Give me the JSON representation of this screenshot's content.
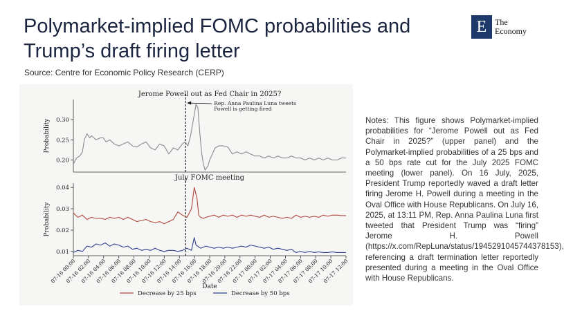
{
  "page": {
    "title": "Polymarket-implied FOMC probabilities and Trump’s draft firing letter",
    "source": "Source: Centre for Economic Policy Research (CERP)",
    "logo_mark": "E",
    "logo_line1": "The",
    "logo_line2": "Economy",
    "notes": "Notes: This figure shows Polymarket-implied probabilities for “Jerome Powell out as Fed Chair in 2025?” (upper panel) and the Polymarket-implied probabilities of a 25 bps and a 50 bps rate cut for the July 2025 FOMC meeting (lower panel). On 16 July, 2025, President Trump reportedly waved a draft letter firing Jerome H. Powell during a meeting in the Oval Office with House Republicans. On July 16, 2025, at 13:11 PM, Rep. Anna Paulina Luna first tweeted that President Trump was “firing” Jerome H. Powell (https://x.com/RepLuna/status/1945291045744378153), referencing a draft termination letter reportedly presented during a meeting in the Oval Office with House Republicans.",
    "colors": {
      "title": "#1b2540",
      "logo_bg": "#1d3a6b",
      "line_top": "#8a8a8a",
      "line_25": "#b0443c",
      "line_50": "#2f3f8f"
    }
  },
  "chart_data": [
    {
      "type": "line",
      "title": "Jerome Powell out as Fed Chair in 2025?",
      "ylabel": "Probability",
      "ylim": [
        0.17,
        0.35
      ],
      "yticks": [
        "0.20",
        "0.25",
        "0.30"
      ],
      "annotation": "Rep. Anna Paulina Luna tweets Powell is getting fired",
      "event_x": 12.35,
      "series": [
        {
          "name": "",
          "color": "#8a8a8a",
          "x": [
            0,
            0.35,
            0.7,
            1,
            1.2,
            1.5,
            1.8,
            2,
            2.5,
            3,
            3.3,
            3.6,
            4,
            4.5,
            5,
            5.5,
            6,
            6.5,
            7,
            7.5,
            8,
            8.5,
            9,
            9.5,
            10,
            10.5,
            11,
            11.5,
            12,
            12.3,
            12.6,
            12.9,
            13.2,
            13.5,
            13.7,
            13.9,
            14.1,
            14.3,
            14.5,
            14.8,
            15,
            15.3,
            15.6,
            16,
            16.5,
            17,
            17.5,
            18,
            18.5,
            19,
            19.5,
            20,
            20.5,
            21,
            21.5,
            22,
            22.5,
            23,
            23.5,
            24,
            24.5,
            25,
            25.5,
            26,
            26.5,
            27,
            27.5,
            28,
            28.5,
            29,
            29.5,
            30
          ],
          "values": [
            0.19,
            0.205,
            0.21,
            0.22,
            0.25,
            0.265,
            0.255,
            0.26,
            0.25,
            0.255,
            0.255,
            0.245,
            0.25,
            0.24,
            0.235,
            0.24,
            0.245,
            0.235,
            0.232,
            0.24,
            0.245,
            0.23,
            0.225,
            0.24,
            0.235,
            0.215,
            0.23,
            0.225,
            0.24,
            0.245,
            0.235,
            0.26,
            0.3,
            0.338,
            0.33,
            0.27,
            0.22,
            0.19,
            0.175,
            0.185,
            0.2,
            0.215,
            0.23,
            0.235,
            0.235,
            0.232,
            0.215,
            0.22,
            0.215,
            0.22,
            0.215,
            0.21,
            0.21,
            0.205,
            0.21,
            0.205,
            0.21,
            0.205,
            0.205,
            0.21,
            0.205,
            0.205,
            0.2,
            0.205,
            0.2,
            0.205,
            0.2,
            0.205,
            0.2,
            0.2,
            0.205,
            0.205
          ]
        }
      ]
    },
    {
      "type": "line",
      "title": "July FOMC meeting",
      "xlabel": "Date",
      "ylabel": "Probability",
      "ylim": [
        0.008,
        0.042
      ],
      "yticks": [
        "0.01",
        "0.02",
        "0.03",
        "0.04"
      ],
      "xtick_labels": [
        "07-16 00:00",
        "07-16 02:00",
        "07-16 04:00",
        "07-16 06:00",
        "07-16 08:00",
        "07-16 10:00",
        "07-16 12:00",
        "07-16 14:00",
        "07-16 16:00",
        "07-16 18:00",
        "07-16 20:00",
        "07-16 22:00",
        "07-17 00:00",
        "07-17 02:00",
        "07-17 04:00",
        "07-17 06:00",
        "07-17 08:00",
        "07-17 10:00",
        "07-17 12:00"
      ],
      "legend": [
        "Decrease by 25 bps",
        "Decrease by 50 bps"
      ],
      "event_x": 12.35,
      "series": [
        {
          "name": "Decrease by 25 bps",
          "color": "#b0443c",
          "x": [
            0,
            0.5,
            1,
            1.5,
            2,
            2.5,
            3,
            3.5,
            4,
            4.5,
            5,
            5.5,
            6,
            6.5,
            7,
            7.5,
            8,
            8.5,
            9,
            9.5,
            10,
            10.5,
            11,
            11.5,
            12,
            12.5,
            13,
            13.3,
            13.6,
            13.8,
            14,
            14.3,
            14.6,
            15,
            15.5,
            16,
            16.5,
            17,
            17.5,
            18,
            18.5,
            19,
            19.5,
            20,
            20.5,
            21,
            21.5,
            22,
            22.5,
            23,
            23.5,
            24,
            24.5,
            25,
            25.5,
            26,
            26.5,
            27,
            27.5,
            28,
            28.5,
            29,
            29.5,
            30
          ],
          "values": [
            0.028,
            0.026,
            0.027,
            0.025,
            0.026,
            0.0255,
            0.0255,
            0.025,
            0.026,
            0.0255,
            0.026,
            0.025,
            0.026,
            0.025,
            0.024,
            0.0245,
            0.025,
            0.024,
            0.0235,
            0.024,
            0.023,
            0.024,
            0.025,
            0.0285,
            0.027,
            0.026,
            0.03,
            0.04,
            0.035,
            0.027,
            0.026,
            0.0255,
            0.026,
            0.0265,
            0.027,
            0.026,
            0.027,
            0.0265,
            0.027,
            0.026,
            0.027,
            0.0265,
            0.027,
            0.0265,
            0.026,
            0.027,
            0.026,
            0.0265,
            0.026,
            0.0255,
            0.026,
            0.0255,
            0.027,
            0.026,
            0.0265,
            0.026,
            0.0265,
            0.026,
            0.027,
            0.0265,
            0.027,
            0.027,
            0.0268,
            0.0268
          ]
        },
        {
          "name": "Decrease by 50 bps",
          "color": "#2f3f8f",
          "x": [
            0,
            0.5,
            1,
            1.5,
            2,
            2.5,
            3,
            3.5,
            4,
            4.5,
            5,
            5.5,
            6,
            6.5,
            7,
            7.5,
            8,
            8.5,
            9,
            9.5,
            10,
            10.5,
            11,
            11.5,
            12,
            12.5,
            13,
            13.3,
            13.5,
            13.8,
            14,
            14.3,
            14.6,
            15,
            15.5,
            16,
            16.5,
            17,
            17.5,
            18,
            18.5,
            19,
            19.5,
            20,
            20.5,
            21,
            21.5,
            22,
            22.5,
            23,
            23.5,
            24,
            24.5,
            25,
            25.5,
            26,
            26.5,
            27,
            27.5,
            28,
            28.5,
            29,
            29.5,
            30
          ],
          "values": [
            0.0095,
            0.0105,
            0.01,
            0.0125,
            0.012,
            0.0135,
            0.013,
            0.014,
            0.0125,
            0.0135,
            0.013,
            0.012,
            0.0125,
            0.011,
            0.0115,
            0.0105,
            0.011,
            0.0105,
            0.0115,
            0.0105,
            0.01,
            0.0105,
            0.0105,
            0.01,
            0.0105,
            0.0115,
            0.0105,
            0.0165,
            0.013,
            0.012,
            0.0115,
            0.012,
            0.0125,
            0.012,
            0.0115,
            0.012,
            0.0115,
            0.012,
            0.0115,
            0.012,
            0.0125,
            0.012,
            0.013,
            0.0125,
            0.012,
            0.0115,
            0.012,
            0.011,
            0.0115,
            0.011,
            0.0105,
            0.011,
            0.0095,
            0.01,
            0.0095,
            0.01,
            0.0095,
            0.0098,
            0.0095,
            0.0095,
            0.0098,
            0.0095,
            0.0095,
            0.0095
          ]
        }
      ]
    }
  ]
}
